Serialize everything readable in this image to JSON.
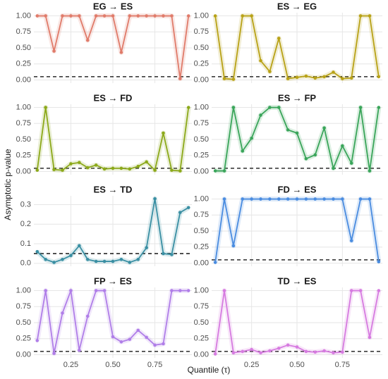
{
  "ylabel": "Asymptotic p-value",
  "xlabel": "Quantile (τ)",
  "chart_data": [
    {
      "type": "line",
      "title": "EG → ES",
      "x": [
        0.05,
        0.1,
        0.15,
        0.2,
        0.25,
        0.3,
        0.35,
        0.4,
        0.45,
        0.5,
        0.55,
        0.6,
        0.65,
        0.7,
        0.75,
        0.8,
        0.85,
        0.9,
        0.95
      ],
      "xlim": [
        0.03,
        0.97
      ],
      "xticks": [
        0.25,
        0.5,
        0.75
      ],
      "ylim": [
        -0.05,
        1.05
      ],
      "yticks": [
        {
          "value": 0,
          "label": "0.00"
        },
        0.25,
        {
          "value": 0.5,
          "label": "0.50"
        },
        0.75,
        {
          "value": 1,
          "label": "1.00"
        }
      ],
      "hline": 0.05,
      "grid": true,
      "series": [
        {
          "color": "#e07b6a",
          "values": [
            1,
            1,
            0.45,
            1,
            1,
            1,
            0.62,
            1,
            1,
            1,
            0.43,
            1,
            1,
            1,
            1,
            1,
            1,
            0.02,
            1
          ]
        }
      ]
    },
    {
      "type": "line",
      "title": "ES → EG",
      "x": [
        0.05,
        0.1,
        0.15,
        0.2,
        0.25,
        0.3,
        0.35,
        0.4,
        0.45,
        0.5,
        0.55,
        0.6,
        0.65,
        0.7,
        0.75,
        0.8,
        0.85,
        0.9,
        0.95
      ],
      "xlim": [
        0.03,
        0.97
      ],
      "xticks": [
        0.25,
        0.5,
        0.75
      ],
      "ylim": [
        -0.05,
        1.05
      ],
      "yticks": [
        {
          "value": 0,
          "label": "0.00"
        },
        0.25,
        {
          "value": 0.5,
          "label": "0.50"
        },
        0.75,
        {
          "value": 1,
          "label": "1.00"
        }
      ],
      "hline": 0.05,
      "grid": true,
      "series": [
        {
          "color": "#b8a217",
          "values": [
            1,
            0.02,
            0.01,
            1,
            1,
            0.3,
            0.13,
            0.65,
            0.02,
            0.04,
            0.06,
            0.03,
            0.05,
            0.12,
            0.02,
            0.03,
            1,
            1,
            0.05
          ]
        }
      ]
    },
    {
      "type": "line",
      "title": "ES → FD",
      "x": [
        0.05,
        0.1,
        0.15,
        0.2,
        0.25,
        0.3,
        0.35,
        0.4,
        0.45,
        0.5,
        0.55,
        0.6,
        0.65,
        0.7,
        0.75,
        0.8,
        0.85,
        0.9,
        0.95
      ],
      "xlim": [
        0.03,
        0.97
      ],
      "xticks": [
        0.25,
        0.5,
        0.75
      ],
      "ylim": [
        -0.05,
        1.05
      ],
      "yticks": [
        {
          "value": 0,
          "label": "0.00"
        },
        0.25,
        {
          "value": 0.5,
          "label": "0.50"
        },
        0.75,
        {
          "value": 1,
          "label": "1.00"
        }
      ],
      "hline": 0.05,
      "grid": true,
      "series": [
        {
          "color": "#8ca91a",
          "values": [
            0.02,
            1,
            0.03,
            0.02,
            0.12,
            0.14,
            0.06,
            0.1,
            0.04,
            0.05,
            0.05,
            0.04,
            0.08,
            0.15,
            0.02,
            0.6,
            0.02,
            0.01,
            1
          ]
        }
      ]
    },
    {
      "type": "line",
      "title": "ES → FP",
      "x": [
        0.05,
        0.1,
        0.15,
        0.2,
        0.25,
        0.3,
        0.35,
        0.4,
        0.45,
        0.5,
        0.55,
        0.6,
        0.65,
        0.7,
        0.75,
        0.8,
        0.85,
        0.9,
        0.95
      ],
      "xlim": [
        0.03,
        0.97
      ],
      "xticks": [
        0.25,
        0.5,
        0.75
      ],
      "ylim": [
        -0.05,
        1.05
      ],
      "yticks": [
        {
          "value": 0,
          "label": "0.00"
        },
        0.25,
        {
          "value": 0.5,
          "label": "0.50"
        },
        0.75,
        {
          "value": 1,
          "label": "1.00"
        }
      ],
      "hline": 0.05,
      "grid": true,
      "series": [
        {
          "color": "#3aa55a",
          "values": [
            0.01,
            0.01,
            1,
            0.32,
            0.52,
            0.88,
            1,
            1,
            0.65,
            0.6,
            0.2,
            0.26,
            0.68,
            0.05,
            0.4,
            0.13,
            1,
            0.01,
            1
          ]
        }
      ]
    },
    {
      "type": "line",
      "title": "ES → TD",
      "x": [
        0.05,
        0.1,
        0.15,
        0.2,
        0.25,
        0.3,
        0.35,
        0.4,
        0.45,
        0.5,
        0.55,
        0.6,
        0.65,
        0.7,
        0.75,
        0.8,
        0.85,
        0.9,
        0.95
      ],
      "xlim": [
        0.03,
        0.97
      ],
      "xticks": [
        0.25,
        0.5,
        0.75
      ],
      "ylim": [
        -0.015,
        0.345
      ],
      "yticks": [
        {
          "value": 0,
          "label": "0.0"
        },
        0.1,
        0.2,
        0.3
      ],
      "hline": 0.05,
      "grid": true,
      "series": [
        {
          "color": "#3a8fa3",
          "values": [
            0.06,
            0.02,
            0.005,
            0.02,
            0.04,
            0.09,
            0.02,
            0.01,
            0.01,
            0.01,
            0.02,
            0.005,
            0.02,
            0.08,
            0.33,
            0.05,
            0.045,
            0.26,
            0.285
          ]
        }
      ]
    },
    {
      "type": "line",
      "title": "FD → ES",
      "x": [
        0.05,
        0.1,
        0.15,
        0.2,
        0.25,
        0.3,
        0.35,
        0.4,
        0.45,
        0.5,
        0.55,
        0.6,
        0.65,
        0.7,
        0.75,
        0.8,
        0.85,
        0.9,
        0.95
      ],
      "xlim": [
        0.03,
        0.97
      ],
      "xticks": [
        0.25,
        0.5,
        0.75
      ],
      "ylim": [
        -0.05,
        1.05
      ],
      "yticks": [
        {
          "value": 0,
          "label": "0.00"
        },
        0.25,
        {
          "value": 0.5,
          "label": "0.50"
        },
        0.75,
        {
          "value": 1,
          "label": "1.00"
        }
      ],
      "hline": 0.05,
      "grid": true,
      "series": [
        {
          "color": "#4a8ce0",
          "values": [
            0.01,
            1,
            0.27,
            1,
            1,
            1,
            1,
            1,
            1,
            1,
            1,
            1,
            1,
            1,
            1,
            0.35,
            1,
            1,
            0.02
          ]
        }
      ]
    },
    {
      "type": "line",
      "title": "FP → ES",
      "x": [
        0.05,
        0.1,
        0.15,
        0.2,
        0.25,
        0.3,
        0.35,
        0.4,
        0.45,
        0.5,
        0.55,
        0.6,
        0.65,
        0.7,
        0.75,
        0.8,
        0.85,
        0.9,
        0.95
      ],
      "xlim": [
        0.03,
        0.97
      ],
      "xticks": [
        0.25,
        {
          "value": 0.5,
          "label": "0.50"
        },
        0.75
      ],
      "ylim": [
        -0.05,
        1.05
      ],
      "yticks": [
        {
          "value": 0,
          "label": "0.00"
        },
        0.25,
        {
          "value": 0.5,
          "label": "0.50"
        },
        0.75,
        {
          "value": 1,
          "label": "1.00"
        }
      ],
      "hline": 0.05,
      "grid": true,
      "series": [
        {
          "color": "#b07ee8",
          "values": [
            0.22,
            1,
            0.02,
            0.65,
            1,
            0.07,
            0.6,
            1,
            1,
            0.28,
            0.2,
            0.24,
            0.38,
            0.27,
            0.15,
            0.17,
            1,
            1,
            1
          ]
        }
      ]
    },
    {
      "type": "line",
      "title": "TD → ES",
      "x": [
        0.05,
        0.1,
        0.15,
        0.2,
        0.25,
        0.3,
        0.35,
        0.4,
        0.45,
        0.5,
        0.55,
        0.6,
        0.65,
        0.7,
        0.75,
        0.8,
        0.85,
        0.9,
        0.95
      ],
      "xlim": [
        0.03,
        0.97
      ],
      "xticks": [
        0.25,
        {
          "value": 0.5,
          "label": "0.50"
        },
        0.75
      ],
      "ylim": [
        -0.05,
        1.05
      ],
      "yticks": [
        {
          "value": 0,
          "label": "0.00"
        },
        0.25,
        {
          "value": 0.5,
          "label": "0.50"
        },
        0.75,
        {
          "value": 1,
          "label": "1.00"
        }
      ],
      "hline": 0.05,
      "grid": true,
      "series": [
        {
          "color": "#d67be0",
          "values": [
            0.01,
            1,
            0.03,
            0.05,
            0.08,
            0.03,
            0.06,
            0.1,
            0.15,
            0.12,
            0.05,
            0.04,
            0.06,
            0.03,
            0.04,
            1,
            1,
            0.27,
            1
          ]
        }
      ]
    }
  ]
}
